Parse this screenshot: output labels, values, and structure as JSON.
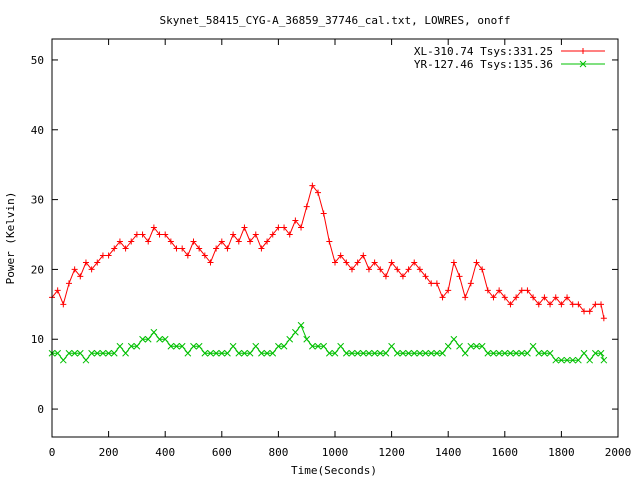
{
  "chart_data": {
    "type": "line",
    "title": "Skynet_58415_CYG-A_36859_37746_cal.txt, LOWRES, onoff",
    "xlabel": "Time(Seconds)",
    "ylabel": "Power (Kelvin)",
    "xlim": [
      0,
      2000
    ],
    "ylim": [
      -4,
      53
    ],
    "x_ticks": [
      0,
      200,
      400,
      600,
      800,
      1000,
      1200,
      1400,
      1600,
      1800,
      2000
    ],
    "y_ticks": [
      0,
      10,
      20,
      30,
      40,
      50
    ],
    "grid": false,
    "legend_position": "top-right",
    "series": [
      {
        "name": "XL-310.74 Tsys:331.25",
        "color": "#ff0000",
        "marker": "plus",
        "x": [
          0,
          20,
          40,
          60,
          80,
          100,
          120,
          140,
          160,
          180,
          200,
          220,
          240,
          260,
          280,
          300,
          320,
          340,
          360,
          380,
          400,
          420,
          440,
          460,
          480,
          500,
          520,
          540,
          560,
          580,
          600,
          620,
          640,
          660,
          680,
          700,
          720,
          740,
          760,
          780,
          800,
          820,
          840,
          860,
          880,
          900,
          920,
          940,
          960,
          980,
          1000,
          1020,
          1040,
          1060,
          1080,
          1100,
          1120,
          1140,
          1160,
          1180,
          1200,
          1220,
          1240,
          1260,
          1280,
          1300,
          1320,
          1340,
          1360,
          1380,
          1400,
          1420,
          1440,
          1460,
          1480,
          1500,
          1520,
          1540,
          1560,
          1580,
          1600,
          1620,
          1640,
          1660,
          1680,
          1700,
          1720,
          1740,
          1760,
          1780,
          1800,
          1820,
          1840,
          1860,
          1880,
          1900,
          1920,
          1940,
          1950
        ],
        "y": [
          16,
          17,
          15,
          18,
          20,
          19,
          21,
          20,
          21,
          22,
          22,
          23,
          24,
          23,
          24,
          25,
          25,
          24,
          26,
          25,
          25,
          24,
          23,
          23,
          22,
          24,
          23,
          22,
          21,
          23,
          24,
          23,
          25,
          24,
          26,
          24,
          25,
          23,
          24,
          25,
          26,
          26,
          25,
          27,
          26,
          29,
          32,
          31,
          28,
          24,
          21,
          22,
          21,
          20,
          21,
          22,
          20,
          21,
          20,
          19,
          21,
          20,
          19,
          20,
          21,
          20,
          19,
          18,
          18,
          16,
          17,
          21,
          19,
          16,
          18,
          21,
          20,
          17,
          16,
          17,
          16,
          15,
          16,
          17,
          17,
          16,
          15,
          16,
          15,
          16,
          15,
          16,
          15,
          15,
          14,
          14,
          15,
          15,
          13
        ]
      },
      {
        "name": "YR-127.46 Tsys:135.36",
        "color": "#00c000",
        "marker": "cross",
        "x": [
          0,
          20,
          40,
          60,
          80,
          100,
          120,
          140,
          160,
          180,
          200,
          220,
          240,
          260,
          280,
          300,
          320,
          340,
          360,
          380,
          400,
          420,
          440,
          460,
          480,
          500,
          520,
          540,
          560,
          580,
          600,
          620,
          640,
          660,
          680,
          700,
          720,
          740,
          760,
          780,
          800,
          820,
          840,
          860,
          880,
          900,
          920,
          940,
          960,
          980,
          1000,
          1020,
          1040,
          1060,
          1080,
          1100,
          1120,
          1140,
          1160,
          1180,
          1200,
          1220,
          1240,
          1260,
          1280,
          1300,
          1320,
          1340,
          1360,
          1380,
          1400,
          1420,
          1440,
          1460,
          1480,
          1500,
          1520,
          1540,
          1560,
          1580,
          1600,
          1620,
          1640,
          1660,
          1680,
          1700,
          1720,
          1740,
          1760,
          1780,
          1800,
          1820,
          1840,
          1860,
          1880,
          1900,
          1920,
          1940,
          1950
        ],
        "y": [
          8,
          8,
          7,
          8,
          8,
          8,
          7,
          8,
          8,
          8,
          8,
          8,
          9,
          8,
          9,
          9,
          10,
          10,
          11,
          10,
          10,
          9,
          9,
          9,
          8,
          9,
          9,
          8,
          8,
          8,
          8,
          8,
          9,
          8,
          8,
          8,
          9,
          8,
          8,
          8,
          9,
          9,
          10,
          11,
          12,
          10,
          9,
          9,
          9,
          8,
          8,
          9,
          8,
          8,
          8,
          8,
          8,
          8,
          8,
          8,
          9,
          8,
          8,
          8,
          8,
          8,
          8,
          8,
          8,
          8,
          9,
          10,
          9,
          8,
          9,
          9,
          9,
          8,
          8,
          8,
          8,
          8,
          8,
          8,
          8,
          9,
          8,
          8,
          8,
          7,
          7,
          7,
          7,
          7,
          8,
          7,
          8,
          8,
          7
        ]
      }
    ]
  }
}
